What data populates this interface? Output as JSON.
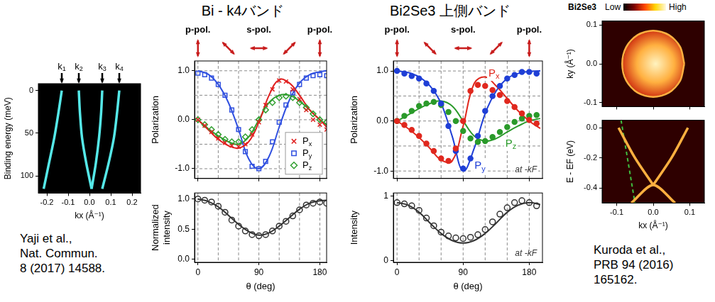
{
  "chart_data": [
    {
      "type": "image",
      "xlabel": "kx (Å⁻¹)",
      "ylabel": "Binding energy (meV)",
      "xlim": [
        -0.24,
        0.24
      ],
      "ylim": [
        120,
        -8
      ],
      "xticks": [
        -0.2,
        -0.1,
        {
          "value": 0,
          "label": "0.0"
        },
        0.1,
        0.2
      ],
      "yticks": [
        0,
        50,
        100
      ],
      "color": "#55e8e8",
      "bands": [
        {
          "x": [
            -0.215,
            -0.19,
            -0.165,
            -0.145,
            -0.13
          ],
          "values": [
            115,
            85,
            55,
            25,
            0
          ]
        },
        {
          "x": [
            0.01,
            -0.015,
            -0.035,
            -0.045,
            -0.05
          ],
          "values": [
            115,
            85,
            55,
            25,
            0
          ]
        },
        {
          "x": [
            0.01,
            0.03,
            0.045,
            0.055,
            0.06
          ],
          "values": [
            115,
            85,
            55,
            25,
            0
          ]
        },
        {
          "x": [
            0.06,
            0.09,
            0.115,
            0.13,
            0.14
          ],
          "values": [
            115,
            85,
            55,
            25,
            0
          ]
        }
      ],
      "markers": [
        {
          "value": -0.13,
          "label": "k1"
        },
        {
          "value": -0.05,
          "label": "k2"
        },
        {
          "value": 0.06,
          "label": "k3"
        },
        {
          "value": 0.14,
          "label": "k4"
        }
      ],
      "citation": [
        "Yaji et al.,",
        "Nat. Commun.",
        "8 (2017) 14588."
      ]
    },
    {
      "type": "scatter",
      "title": "Bi - k4バンド",
      "ylabel": "Polarization",
      "xlim": [
        -5,
        190
      ],
      "ylim": [
        -1.2,
        1.2
      ],
      "xticks": [
        0,
        90,
        180
      ],
      "yticks": [
        {
          "value": -1,
          "label": "-1.0"
        },
        {
          "value": 0,
          "label": "0.0"
        },
        {
          "value": 1,
          "label": "1.0"
        }
      ],
      "tick_labels": "y",
      "x_gridlines": [
        0,
        30,
        60,
        90,
        120,
        150,
        180
      ],
      "y_gridlines": [
        -1,
        -0.5,
        0,
        0.5,
        1
      ],
      "legend": "lower right",
      "polarization_arrows": [
        0,
        45,
        90,
        135,
        180
      ],
      "polarization_labels": [
        {
          "value": 0,
          "label": "p-pol."
        },
        {
          "value": 90,
          "label": "s-pol."
        },
        {
          "value": 180,
          "label": "p-pol."
        }
      ],
      "x": [
        0,
        10,
        20,
        30,
        40,
        50,
        60,
        70,
        80,
        90,
        100,
        110,
        120,
        130,
        140,
        150,
        160,
        170,
        180,
        190
      ],
      "fit_x": [
        0,
        15,
        30,
        45,
        60,
        75,
        90,
        105,
        120,
        135,
        150,
        165,
        180,
        190
      ],
      "series": [
        {
          "name": "Px",
          "color": "#e02020",
          "marker": "x",
          "values": [
            0.0,
            -0.12,
            -0.25,
            -0.38,
            -0.47,
            -0.53,
            -0.55,
            -0.5,
            -0.3,
            -0.05,
            0.3,
            0.62,
            0.8,
            0.78,
            0.62,
            0.42,
            0.2,
            0.0,
            -0.1,
            -0.2
          ],
          "fit_values": [
            0,
            -0.2,
            -0.4,
            -0.53,
            -0.58,
            -0.45,
            -0.05,
            0.5,
            0.82,
            0.75,
            0.5,
            0.2,
            0,
            -0.15
          ]
        },
        {
          "name": "Py",
          "color": "#3050e0",
          "marker": "square",
          "values": [
            0.95,
            0.92,
            0.85,
            0.72,
            0.5,
            0.2,
            -0.2,
            -0.65,
            -0.95,
            -1.0,
            -0.85,
            -0.45,
            -0.05,
            0.3,
            0.55,
            0.72,
            0.85,
            0.9,
            0.92,
            0.9
          ],
          "fit_values": [
            1.0,
            0.93,
            0.72,
            0.35,
            -0.2,
            -0.8,
            -1.0,
            -0.75,
            -0.15,
            0.4,
            0.75,
            0.92,
            0.98,
            1.0
          ]
        },
        {
          "name": "Pz",
          "color": "#30a030",
          "marker": "diamond",
          "values": [
            0.0,
            -0.1,
            -0.2,
            -0.3,
            -0.4,
            -0.45,
            -0.45,
            -0.35,
            -0.2,
            0.0,
            0.2,
            0.35,
            0.45,
            0.48,
            0.45,
            0.35,
            0.25,
            0.12,
            0.0,
            -0.05
          ],
          "fit_values": [
            0,
            -0.18,
            -0.33,
            -0.45,
            -0.5,
            -0.35,
            0,
            0.35,
            0.5,
            0.5,
            0.38,
            0.2,
            0,
            -0.1
          ]
        }
      ]
    },
    {
      "type": "scatter",
      "xlabel": "θ (deg)",
      "ylabel": "Normalized intensity",
      "xlim": [
        -5,
        190
      ],
      "ylim": [
        -0.05,
        1.1
      ],
      "xticks": [
        0,
        90,
        180
      ],
      "yticks": [
        {
          "value": 0,
          "label": "0.0"
        },
        0.5,
        {
          "value": 1,
          "label": "1.0"
        }
      ],
      "x_gridlines": [
        0,
        30,
        60,
        90,
        120,
        150,
        180
      ],
      "x": [
        0,
        10,
        20,
        30,
        40,
        50,
        60,
        70,
        80,
        90,
        100,
        110,
        120,
        130,
        140,
        150,
        160,
        170,
        180,
        190
      ],
      "values": [
        1.0,
        0.98,
        0.95,
        0.88,
        0.78,
        0.65,
        0.55,
        0.47,
        0.41,
        0.39,
        0.41,
        0.47,
        0.55,
        0.63,
        0.72,
        0.82,
        0.9,
        0.93,
        0.95,
        0.93
      ],
      "fit_x": [
        0,
        15,
        30,
        45,
        60,
        75,
        90,
        105,
        120,
        135,
        150,
        165,
        180,
        190
      ],
      "fit_values": [
        1.0,
        0.96,
        0.87,
        0.73,
        0.58,
        0.46,
        0.4,
        0.44,
        0.55,
        0.69,
        0.83,
        0.93,
        0.97,
        0.98
      ],
      "color": "#333333",
      "marker": "open_circle"
    },
    {
      "type": "scatter",
      "title": "Bi2Se3 上側バンド",
      "ylabel": "Polarization",
      "xlim": [
        -5,
        198
      ],
      "ylim": [
        -1.15,
        1.2
      ],
      "xticks": [
        0,
        90,
        180
      ],
      "yticks": [
        {
          "value": -1,
          "label": "-1.0"
        },
        {
          "value": 0,
          "label": "0.0"
        },
        {
          "value": 1,
          "label": "1.0"
        }
      ],
      "tick_labels": "y",
      "x_gridlines": [
        0,
        30,
        60,
        90,
        120,
        150,
        180
      ],
      "y_gridlines": [
        -1,
        -0.5,
        0,
        0.5,
        1
      ],
      "polarization_arrows": [
        0,
        45,
        90,
        135,
        180
      ],
      "polarization_labels": [
        {
          "value": 0,
          "label": "p-pol."
        },
        {
          "value": 90,
          "label": "s-pol."
        },
        {
          "value": 180,
          "label": "p-pol."
        }
      ],
      "annotation": "at -kF",
      "x": [
        0,
        10,
        20,
        30,
        40,
        50,
        60,
        70,
        80,
        90,
        100,
        110,
        120,
        130,
        140,
        150,
        160,
        170,
        180,
        190
      ],
      "fit_x": [
        0,
        15,
        30,
        45,
        60,
        75,
        90,
        105,
        120,
        135,
        150,
        165,
        180,
        195
      ],
      "series": [
        {
          "name": "Px",
          "color": "#e0281e",
          "marker": "circle",
          "values": [
            0.0,
            -0.08,
            -0.18,
            -0.3,
            -0.45,
            -0.6,
            -0.75,
            -0.8,
            -0.55,
            0.0,
            0.6,
            0.72,
            0.7,
            0.62,
            0.52,
            0.4,
            0.28,
            0.15,
            0.02,
            -0.05
          ],
          "fit_values": [
            0,
            -0.15,
            -0.33,
            -0.55,
            -0.78,
            -0.8,
            -0.1,
            0.75,
            0.88,
            0.7,
            0.45,
            0.2,
            0,
            -0.15
          ]
        },
        {
          "name": "Py",
          "color": "#1f3fd6",
          "marker": "circle",
          "values": [
            1.0,
            0.95,
            0.9,
            0.85,
            0.75,
            0.6,
            0.35,
            -0.1,
            -0.6,
            -0.95,
            -0.75,
            -0.3,
            0.2,
            0.5,
            0.7,
            0.85,
            0.92,
            0.98,
            0.98,
            0.95
          ],
          "fit_values": [
            1.0,
            0.97,
            0.88,
            0.7,
            0.35,
            -0.3,
            -1.0,
            -0.55,
            0.15,
            0.6,
            0.85,
            0.95,
            0.99,
            1.0
          ]
        },
        {
          "name": "Pz",
          "color": "#2a9a2a",
          "marker": "circle",
          "values": [
            0.0,
            0.1,
            0.2,
            0.3,
            0.35,
            0.38,
            0.32,
            0.18,
            0.0,
            -0.2,
            -0.35,
            -0.42,
            -0.4,
            -0.32,
            -0.22,
            -0.12,
            -0.02,
            0.05,
            0.1,
            0.12
          ],
          "fit_values": [
            0,
            0.12,
            0.25,
            0.35,
            0.4,
            0.3,
            0,
            -0.3,
            -0.4,
            -0.35,
            -0.22,
            -0.1,
            0,
            0.05
          ]
        }
      ]
    },
    {
      "type": "scatter",
      "xlabel": "θ (deg)",
      "ylabel": "Intensity",
      "xlim": [
        -5,
        198
      ],
      "ylim": [
        -0.03,
        1.05
      ],
      "xticks": [
        0,
        90,
        180
      ],
      "yticks": [
        0,
        1
      ],
      "x_gridlines": [
        0,
        30,
        60,
        90,
        120,
        150,
        180
      ],
      "annotation": "at -kF",
      "x": [
        0,
        10,
        20,
        30,
        40,
        50,
        60,
        70,
        80,
        90,
        100,
        110,
        120,
        130,
        140,
        150,
        160,
        170,
        180,
        190
      ],
      "values": [
        0.9,
        0.88,
        0.85,
        0.78,
        0.66,
        0.54,
        0.44,
        0.38,
        0.35,
        0.34,
        0.36,
        0.4,
        0.48,
        0.6,
        0.72,
        0.82,
        0.9,
        0.93,
        0.9,
        0.85
      ],
      "fit_x": [
        0,
        15,
        30,
        45,
        60,
        75,
        90,
        105,
        120,
        135,
        150,
        165,
        180,
        195
      ],
      "fit_values": [
        0.9,
        0.86,
        0.75,
        0.58,
        0.42,
        0.31,
        0.27,
        0.31,
        0.42,
        0.58,
        0.75,
        0.86,
        0.9,
        0.87
      ],
      "color": "#333333",
      "marker": "open_circle"
    },
    {
      "type": "image",
      "title": "Bi2Se3",
      "colorbar_labels": [
        "Low",
        "High"
      ],
      "ylabel": "ky (Å⁻¹)",
      "xlim": [
        -0.14,
        0.14
      ],
      "ylim": [
        -0.11,
        0.11
      ],
      "xticks": [
        -0.1,
        {
          "value": 0,
          "label": "0.0"
        },
        0.1
      ],
      "yticks": [
        -0.1,
        {
          "value": 0,
          "label": "0.0"
        },
        0.1
      ],
      "tick_labels": "y",
      "color": "#ffb040",
      "contour": {
        "x": [
          0.085,
          0.074,
          0.043,
          0,
          -0.043,
          -0.074,
          -0.085,
          -0.074,
          -0.043,
          0,
          0.043,
          0.074,
          0.085
        ],
        "values": [
          0,
          0.043,
          0.074,
          0.085,
          0.074,
          0.043,
          0,
          -0.043,
          -0.074,
          -0.085,
          -0.074,
          -0.043,
          0
        ]
      }
    },
    {
      "type": "image",
      "xlabel": "kx (Å⁻¹)",
      "ylabel": "E - EF (eV)",
      "xlim": [
        -0.14,
        0.14
      ],
      "ylim": [
        -0.5,
        0.05
      ],
      "xticks": [
        -0.1,
        {
          "value": 0,
          "label": "0.0"
        },
        0.1
      ],
      "yticks": [
        -0.4,
        -0.2,
        {
          "value": 0,
          "label": "0.0"
        }
      ],
      "color": "#ffb040",
      "bands": [
        {
          "x": [
            -0.095,
            -0.05,
            0.0
          ],
          "values": [
            0.0,
            -0.2,
            -0.38
          ]
        },
        {
          "x": [
            0.0,
            0.05,
            0.095
          ],
          "values": [
            -0.38,
            -0.2,
            0.0
          ]
        },
        {
          "x": [
            -0.06,
            0.0,
            0.06
          ],
          "values": [
            -0.5,
            -0.38,
            -0.5
          ]
        }
      ],
      "guide": {
        "x": [
          -0.088,
          -0.05
        ],
        "values": [
          0.05,
          -0.5
        ],
        "color": "#40c040",
        "line_style": "dashed"
      },
      "citation": [
        "Kuroda et al.,",
        "PRB 94 (2016)",
        "165162."
      ]
    }
  ]
}
